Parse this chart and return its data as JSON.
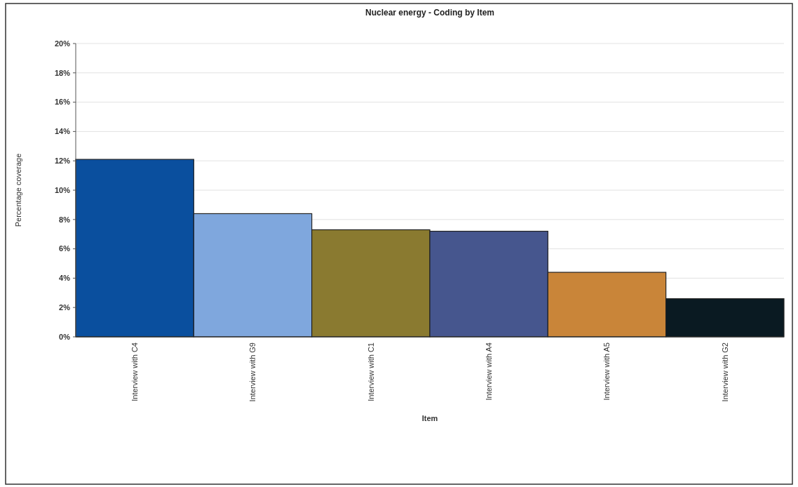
{
  "chart_data": {
    "type": "bar",
    "title": "Nuclear energy - Coding by Item",
    "xlabel": "Item",
    "ylabel": "Percentage coverage",
    "categories": [
      "Interview with C4",
      "Interview with G9",
      "Interview with C1",
      "Interview with A4",
      "Interview with A5",
      "Interview with G2"
    ],
    "values": [
      12.1,
      8.4,
      7.3,
      7.2,
      4.4,
      2.6
    ],
    "colors": [
      "#0a4f9e",
      "#7fa7dd",
      "#8a7a30",
      "#46568e",
      "#c98539",
      "#0a1a22"
    ],
    "ylim": [
      0,
      20
    ],
    "yticks": [
      {
        "value": 0,
        "label": "0%"
      },
      {
        "value": 2,
        "label": "2%"
      },
      {
        "value": 4,
        "label": "4%"
      },
      {
        "value": 6,
        "label": "6%"
      },
      {
        "value": 8,
        "label": "8%"
      },
      {
        "value": 10,
        "label": "10%"
      },
      {
        "value": 12,
        "label": "12%"
      },
      {
        "value": 14,
        "label": "14%"
      },
      {
        "value": 16,
        "label": "16%"
      },
      {
        "value": 18,
        "label": "18%"
      },
      {
        "value": 20,
        "label": "20%"
      }
    ],
    "grid": "y"
  }
}
